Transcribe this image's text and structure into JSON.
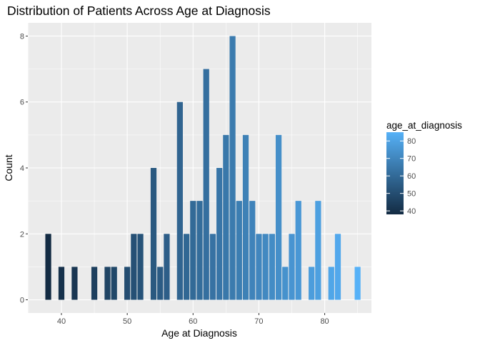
{
  "chart_data": {
    "type": "bar",
    "title": "Distribution of Patients Across Age at Diagnosis",
    "xlabel": "Age at Diagnosis",
    "ylabel": "Count",
    "xlim": [
      34.9,
      87.1
    ],
    "ylim": [
      -0.4,
      8.4
    ],
    "x_ticks": [
      "40",
      "50",
      "60",
      "70",
      "80"
    ],
    "y_ticks": [
      "0",
      "2",
      "4",
      "6",
      "8"
    ],
    "grid": true,
    "legend_position": "right",
    "legend": {
      "title": "age_at_diagnosis",
      "type": "gradient",
      "low_color": "#132b43",
      "high_color": "#56b1f7",
      "min": 38,
      "max": 85,
      "breaks": [
        "40",
        "50",
        "60",
        "70",
        "80"
      ]
    },
    "x": [
      38,
      40,
      42,
      45,
      47,
      48,
      50,
      51,
      52,
      54,
      55,
      56,
      58,
      59,
      60,
      61,
      62,
      63,
      64,
      65,
      66,
      67,
      68,
      69,
      70,
      71,
      72,
      73,
      74,
      75,
      76,
      78,
      79,
      81,
      82,
      85
    ],
    "values": [
      2,
      1,
      1,
      1,
      1,
      1,
      1,
      2,
      2,
      4,
      1,
      2,
      6,
      2,
      3,
      3,
      7,
      2,
      4,
      5,
      8,
      3,
      5,
      3,
      2,
      2,
      2,
      5,
      1,
      2,
      3,
      1,
      3,
      1,
      2,
      1
    ]
  }
}
